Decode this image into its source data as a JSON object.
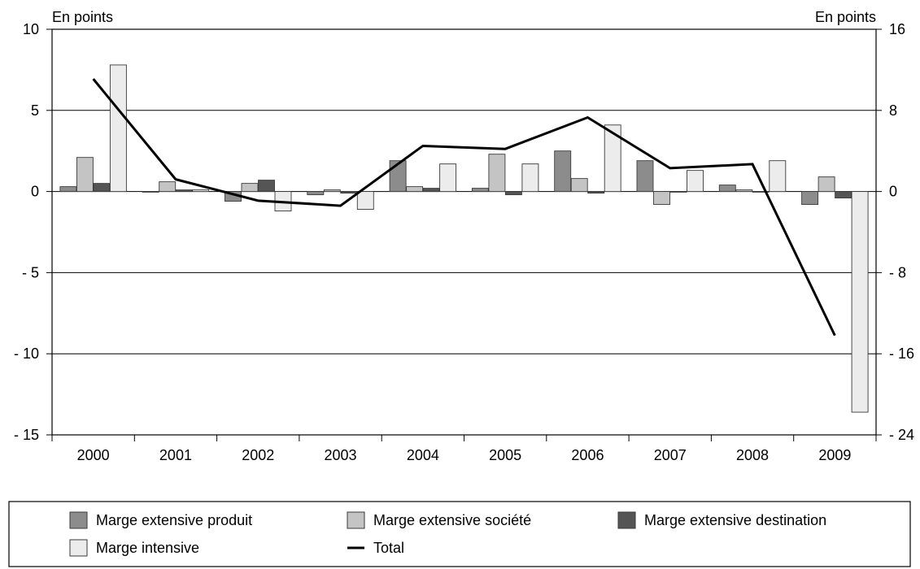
{
  "chart_data": {
    "type": "bar",
    "left_unit": "En points",
    "right_unit": "En points",
    "categories": [
      "2000",
      "2001",
      "2002",
      "2003",
      "2004",
      "2005",
      "2006",
      "2007",
      "2008",
      "2009"
    ],
    "y_left": {
      "range": [
        -15,
        10
      ],
      "ticks": [
        10,
        5,
        0,
        -5,
        -10,
        -15
      ],
      "tick_labels": [
        "10",
        "5",
        "0",
        "- 5",
        "- 10",
        "- 15"
      ]
    },
    "y_right": {
      "range": [
        -24,
        16
      ],
      "ticks": [
        16,
        8,
        0,
        -8,
        -16,
        -24
      ],
      "tick_labels": [
        "16",
        "8",
        "0",
        "- 8",
        "- 16",
        "- 24"
      ]
    },
    "grid": true,
    "series": [
      {
        "name": "Marge extensive produit",
        "kind": "bar",
        "axis": "left",
        "color": "#8c8c8c",
        "values": [
          0.3,
          0.0,
          -0.6,
          -0.2,
          1.9,
          0.2,
          2.5,
          1.9,
          0.4,
          -0.8
        ]
      },
      {
        "name": "Marge extensive société",
        "kind": "bar",
        "axis": "left",
        "color": "#c4c4c4",
        "values": [
          2.1,
          0.6,
          0.5,
          0.1,
          0.3,
          2.3,
          0.8,
          -0.8,
          0.1,
          0.9
        ]
      },
      {
        "name": "Marge extensive destination",
        "kind": "bar",
        "axis": "left",
        "color": "#555555",
        "values": [
          0.5,
          0.1,
          0.7,
          -0.1,
          0.2,
          -0.2,
          -0.1,
          0.0,
          0.0,
          -0.4
        ]
      },
      {
        "name": "Marge intensive",
        "kind": "bar",
        "axis": "left",
        "color": "#ececec",
        "values": [
          7.8,
          0.1,
          -1.2,
          -1.1,
          1.7,
          1.7,
          4.1,
          1.3,
          1.9,
          -13.6
        ]
      },
      {
        "name": "Total",
        "kind": "line",
        "axis": "right",
        "color": "#000000",
        "values": [
          11.1,
          1.2,
          -0.9,
          -1.4,
          4.5,
          4.2,
          7.3,
          2.3,
          2.7,
          -14.2
        ]
      }
    ],
    "legend_position": "bottom"
  }
}
